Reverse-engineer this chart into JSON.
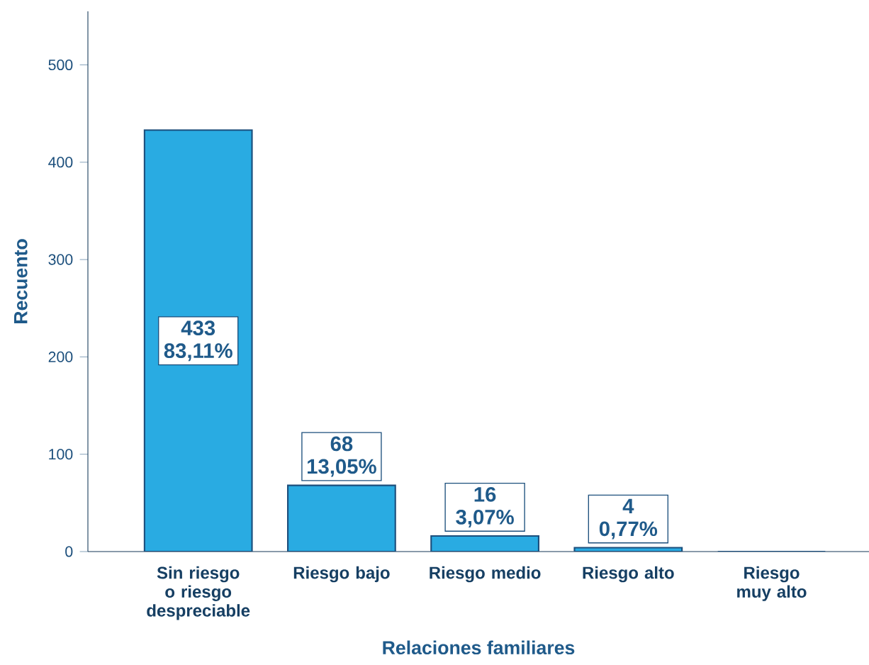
{
  "chart_data": {
    "type": "bar",
    "xlabel": "Relaciones familiares",
    "ylabel": "Recuento",
    "categories": [
      "Sin riesgo o riesgo despreciable",
      "Riesgo bajo",
      "Riesgo medio",
      "Riesgo alto",
      "Riesgo muy alto"
    ],
    "values": [
      433,
      68,
      16,
      4,
      0
    ],
    "value_labels": [
      "433 83,11%",
      "68 13,05%",
      "16 3,07%",
      "4 0,77%",
      null
    ],
    "color": "#29abe2",
    "ylim": [
      0,
      555
    ],
    "yticks": [
      0,
      100,
      200,
      300,
      400,
      500
    ]
  }
}
